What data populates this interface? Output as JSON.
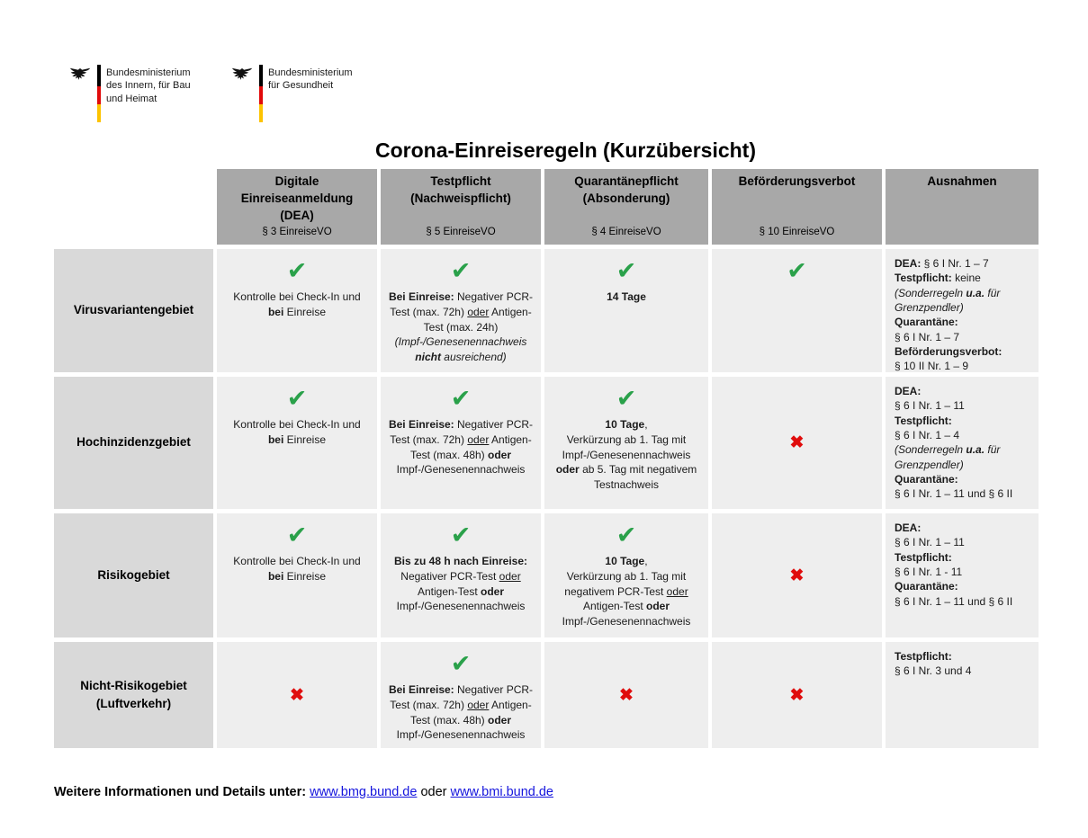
{
  "page": {
    "title": "Corona-Einreiseregeln (Kurzübersicht)"
  },
  "logos": [
    {
      "lines": [
        "Bundesministerium",
        "des Innern, für Bau",
        "und Heimat"
      ]
    },
    {
      "lines": [
        "Bundesministerium",
        "für Gesundheit"
      ]
    }
  ],
  "colors": {
    "check_green": "#2aa14a",
    "cross_red": "#e00c0c",
    "header_bg": "#a8a8a8",
    "label_bg": "#d9d9d9",
    "cell_bg": "#eeeeee",
    "link_blue": "#1414dd",
    "flag_black": "#000000",
    "flag_red": "#e10a0a",
    "flag_gold": "#fdc300"
  },
  "icons": {
    "check": "✔",
    "cross": "✖"
  },
  "table": {
    "headers": [
      {
        "title_lines": [
          "Digitale",
          "Einreiseanmeldung",
          "(DEA)"
        ],
        "subtitle": "§ 3 EinreiseVO"
      },
      {
        "title_lines": [
          "Testpflicht",
          "(Nachweispflicht)"
        ],
        "subtitle": "§ 5 EinreiseVO"
      },
      {
        "title_lines": [
          "Quarantänepflicht",
          "(Absonderung)"
        ],
        "subtitle": "§ 4 EinreiseVO"
      },
      {
        "title_lines": [
          "Beförderungsverbot"
        ],
        "subtitle": "§ 10 EinreiseVO"
      },
      {
        "title_lines": [
          "Ausnahmen"
        ],
        "subtitle": ""
      }
    ],
    "rows": [
      {
        "label_lines": [
          "Virusvariantengebiet"
        ],
        "cells": [
          {
            "mark": "check",
            "lines": [
              [
                {
                  "t": "Kontrolle bei Check-In und"
                }
              ],
              [
                {
                  "t": "bei",
                  "b": true
                },
                {
                  "t": " Einreise"
                }
              ]
            ]
          },
          {
            "mark": "check",
            "lines": [
              [
                {
                  "t": "Bei Einreise:",
                  "b": true
                },
                {
                  "t": " Negativer PCR-"
                }
              ],
              [
                {
                  "t": "Test (max. 72h) "
                },
                {
                  "t": "oder",
                  "u": true
                },
                {
                  "t": " Antigen-"
                }
              ],
              [
                {
                  "t": "Test (max. 24h)"
                }
              ],
              [
                {
                  "t": "(Impf-/Genesenennachweis",
                  "i": true
                }
              ],
              [
                {
                  "t": "nicht",
                  "b": true,
                  "i": true
                },
                {
                  "t": " ausreichend)",
                  "i": true
                }
              ]
            ]
          },
          {
            "mark": "check",
            "lines": [
              [
                {
                  "t": "14 Tage",
                  "b": true
                }
              ]
            ]
          },
          {
            "mark": "check",
            "lines": []
          },
          {
            "mark": null,
            "lines": [
              [
                {
                  "t": "DEA:",
                  "b": true
                },
                {
                  "t": " § 6 I Nr. 1 – 7"
                }
              ],
              [
                {
                  "t": "Testpflicht:",
                  "b": true
                },
                {
                  "t": " keine"
                }
              ],
              [
                {
                  "t": "(Sonderregeln ",
                  "i": true
                },
                {
                  "t": "u.a.",
                  "b": true,
                  "i": true
                },
                {
                  "t": " für",
                  "i": true
                }
              ],
              [
                {
                  "t": "Grenzpendler)",
                  "i": true
                }
              ],
              [
                {
                  "t": "Quarantäne:",
                  "b": true
                }
              ],
              [
                {
                  "t": "§ 6 I Nr. 1 – 7"
                }
              ],
              [
                {
                  "t": "Beförderungsverbot:",
                  "b": true
                }
              ],
              [
                {
                  "t": "§ 10 II Nr. 1 – 9"
                }
              ]
            ]
          }
        ]
      },
      {
        "label_lines": [
          "Hochinzidenzgebiet"
        ],
        "cells": [
          {
            "mark": "check",
            "lines": [
              [
                {
                  "t": "Kontrolle bei Check-In und"
                }
              ],
              [
                {
                  "t": "bei",
                  "b": true
                },
                {
                  "t": " Einreise"
                }
              ]
            ]
          },
          {
            "mark": "check",
            "lines": [
              [
                {
                  "t": "Bei Einreise:",
                  "b": true
                },
                {
                  "t": " Negativer PCR-"
                }
              ],
              [
                {
                  "t": "Test (max. 72h) "
                },
                {
                  "t": "oder",
                  "u": true
                },
                {
                  "t": " Antigen-"
                }
              ],
              [
                {
                  "t": "Test (max. 48h) "
                },
                {
                  "t": "oder",
                  "b": true
                }
              ],
              [
                {
                  "t": "Impf-/Genesenennachweis"
                }
              ]
            ]
          },
          {
            "mark": "check",
            "lines": [
              [
                {
                  "t": "10 Tage",
                  "b": true
                },
                {
                  "t": ","
                }
              ],
              [
                {
                  "t": "Verkürzung ab 1. Tag mit"
                }
              ],
              [
                {
                  "t": "Impf-/Genesenennachweis"
                }
              ],
              [
                {
                  "t": "oder",
                  "b": true
                },
                {
                  "t": " ab 5. Tag mit negativem"
                }
              ],
              [
                {
                  "t": "Testnachweis"
                }
              ]
            ]
          },
          {
            "mark": "cross",
            "lines": []
          },
          {
            "mark": null,
            "lines": [
              [
                {
                  "t": "DEA:",
                  "b": true
                }
              ],
              [
                {
                  "t": "§ 6 I Nr. 1 – 11"
                }
              ],
              [
                {
                  "t": "Testpflicht:",
                  "b": true
                }
              ],
              [
                {
                  "t": "§ 6 I Nr. 1 – 4"
                }
              ],
              [
                {
                  "t": "(Sonderregeln ",
                  "i": true
                },
                {
                  "t": "u.a.",
                  "b": true,
                  "i": true
                },
                {
                  "t": " für",
                  "i": true
                }
              ],
              [
                {
                  "t": "Grenzpendler)",
                  "i": true
                }
              ],
              [
                {
                  "t": "Quarantäne:",
                  "b": true
                }
              ],
              [
                {
                  "t": "§ 6 I Nr. 1 – 11 und § 6 II"
                }
              ]
            ]
          }
        ]
      },
      {
        "label_lines": [
          "Risikogebiet"
        ],
        "cells": [
          {
            "mark": "check",
            "lines": [
              [
                {
                  "t": "Kontrolle bei Check-In und"
                }
              ],
              [
                {
                  "t": "bei",
                  "b": true
                },
                {
                  "t": " Einreise"
                }
              ]
            ]
          },
          {
            "mark": "check",
            "lines": [
              [
                {
                  "t": "Bis zu 48 h nach Einreise:",
                  "b": true
                }
              ],
              [
                {
                  "t": "Negativer PCR-Test "
                },
                {
                  "t": "oder",
                  "u": true
                }
              ],
              [
                {
                  "t": "Antigen-Test "
                },
                {
                  "t": "oder",
                  "b": true
                }
              ],
              [
                {
                  "t": "Impf-/Genesenennachweis"
                }
              ]
            ]
          },
          {
            "mark": "check",
            "lines": [
              [
                {
                  "t": "10 Tage",
                  "b": true
                },
                {
                  "t": ","
                }
              ],
              [
                {
                  "t": "Verkürzung ab 1. Tag mit"
                }
              ],
              [
                {
                  "t": "negativem PCR-Test "
                },
                {
                  "t": "oder",
                  "u": true
                }
              ],
              [
                {
                  "t": "Antigen-Test "
                },
                {
                  "t": "oder",
                  "b": true
                }
              ],
              [
                {
                  "t": "Impf-/Genesenennachweis"
                }
              ]
            ]
          },
          {
            "mark": "cross",
            "lines": []
          },
          {
            "mark": null,
            "lines": [
              [
                {
                  "t": "DEA:",
                  "b": true
                }
              ],
              [
                {
                  "t": "§ 6 I Nr. 1 – 11"
                }
              ],
              [
                {
                  "t": "Testpflicht:",
                  "b": true
                }
              ],
              [
                {
                  "t": "§ 6 I Nr. 1 - 11"
                }
              ],
              [
                {
                  "t": "Quarantäne:",
                  "b": true
                }
              ],
              [
                {
                  "t": "§ 6 I Nr. 1 – 11 und § 6 II"
                }
              ]
            ]
          }
        ]
      },
      {
        "label_lines": [
          "Nicht-Risikogebiet",
          "(Luftverkehr)"
        ],
        "cells": [
          {
            "mark": "cross",
            "lines": []
          },
          {
            "mark": "check",
            "lines": [
              [
                {
                  "t": "Bei Einreise:",
                  "b": true
                },
                {
                  "t": " Negativer PCR-"
                }
              ],
              [
                {
                  "t": "Test (max. 72h) "
                },
                {
                  "t": "oder",
                  "u": true
                },
                {
                  "t": " Antigen-"
                }
              ],
              [
                {
                  "t": "Test (max. 48h) "
                },
                {
                  "t": "oder",
                  "b": true
                }
              ],
              [
                {
                  "t": "Impf-/Genesenennachweis"
                }
              ]
            ]
          },
          {
            "mark": "cross",
            "lines": []
          },
          {
            "mark": "cross",
            "lines": []
          },
          {
            "mark": null,
            "lines": [
              [
                {
                  "t": "Testpflicht:",
                  "b": true
                }
              ],
              [
                {
                  "t": "§ 6 I Nr. 3 und 4"
                }
              ]
            ]
          }
        ]
      }
    ]
  },
  "footer": {
    "prefix": "Weitere Informationen und Details unter:",
    "link_bmg": "www.bmg.bund.de",
    "separator": "oder",
    "link_bmi": "www.bmi.bund.de"
  }
}
